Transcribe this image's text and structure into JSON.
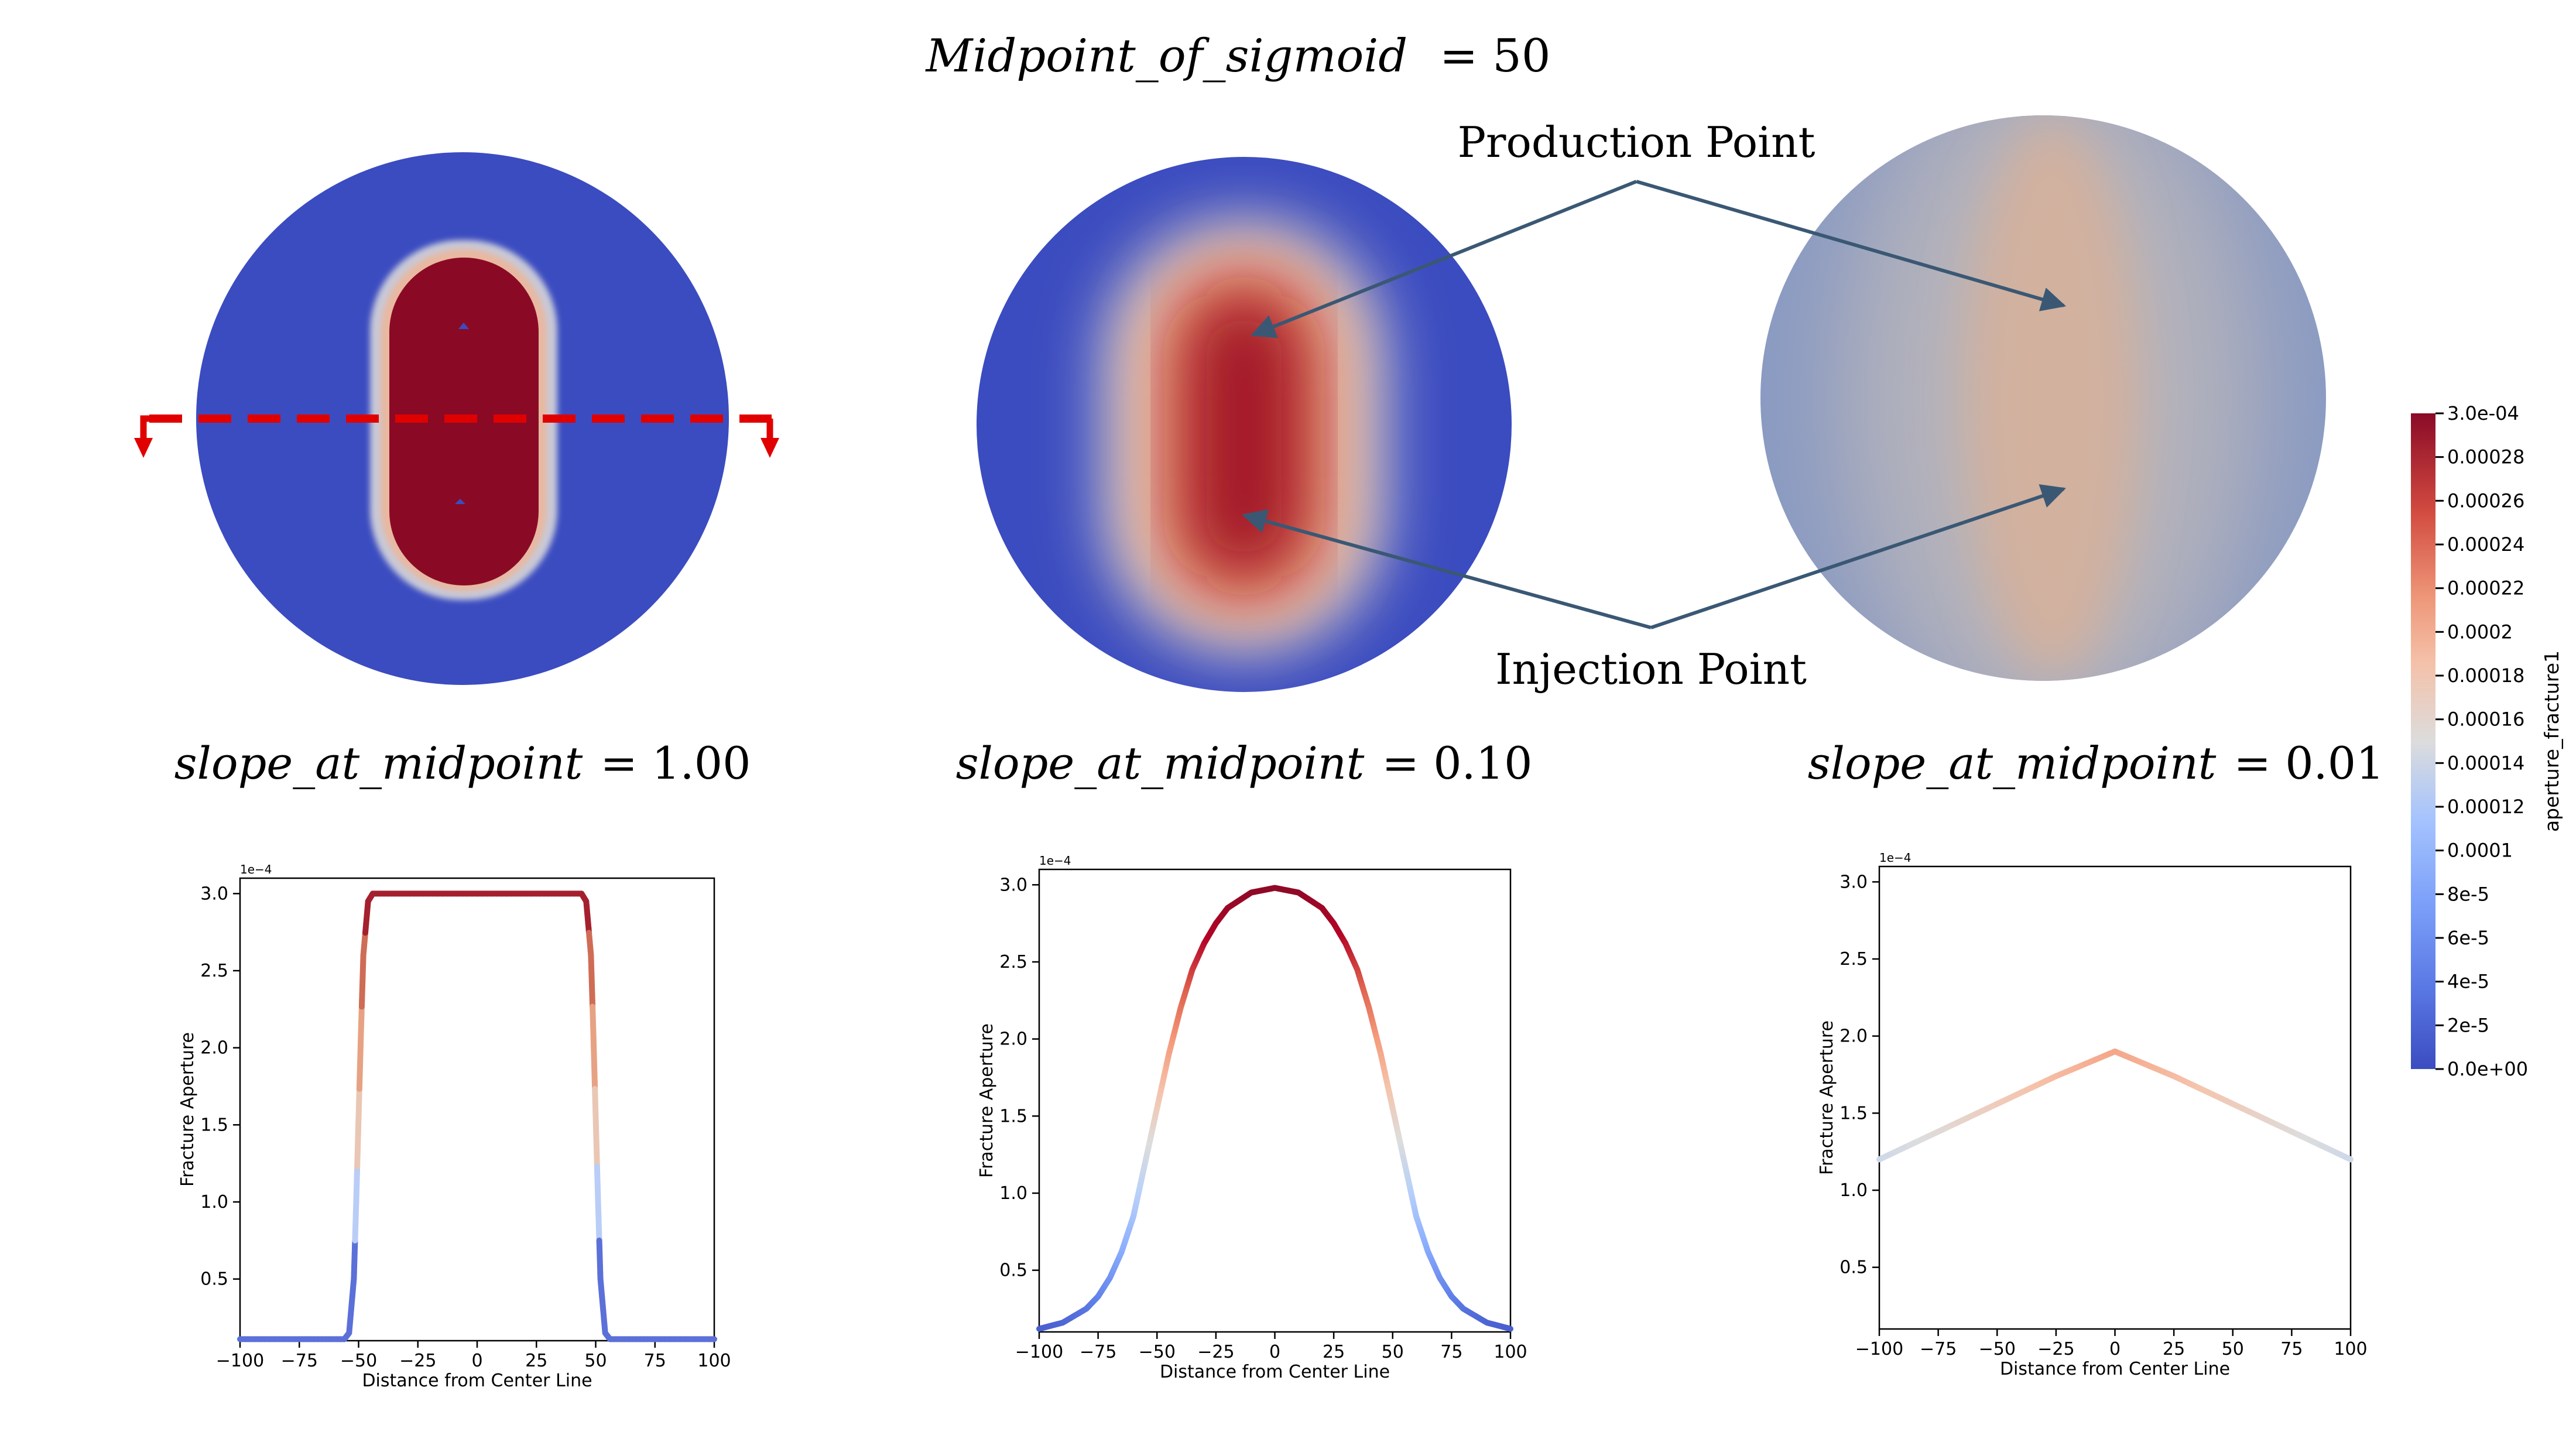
{
  "main_title": {
    "name": "Midpoint_of_sigmoid",
    "value": "= 50"
  },
  "annotations": {
    "production": "Production Point",
    "injection": "Injection Point"
  },
  "slope_labels": [
    {
      "name": "slope_at_midpoint",
      "value": "= 1.00"
    },
    {
      "name": "slope_at_midpoint",
      "value": "= 0.10"
    },
    {
      "name": "slope_at_midpoint",
      "value": "= 0.01"
    }
  ],
  "colorbar": {
    "title": "aperture_fracture1",
    "min": 0,
    "max": 0.0003,
    "tick_labels": [
      "3.0e-04",
      "0.00028",
      "0.00026",
      "0.00024",
      "0.00022",
      "0.0002",
      "0.00018",
      "0.00016",
      "0.00014",
      "0.00012",
      "0.0001",
      "8e-5",
      "6e-5",
      "4e-5",
      "2e-5",
      "0.0e+00"
    ],
    "colors": [
      "#3b4cc0",
      "#6282ea",
      "#8db0fe",
      "#b8d0f9",
      "#dddddd",
      "#f5c4ac",
      "#f49a7b",
      "#de604d",
      "#b40426",
      "#8b0a27"
    ]
  },
  "chart_data": [
    {
      "type": "line",
      "title": "",
      "xlabel": "Distance from Center Line",
      "ylabel": "Fracture Aperture",
      "y_multiplier": "1e−4",
      "xlim": [
        -100,
        100
      ],
      "ylim": [
        0.1,
        3.1
      ],
      "xticks": [
        -100,
        -75,
        -50,
        -25,
        0,
        25,
        50,
        75,
        100
      ],
      "xtick_labels": [
        "−100",
        "−75",
        "−50",
        "−25",
        "0",
        "25",
        "50",
        "75",
        "100"
      ],
      "yticks": [
        0.5,
        1.0,
        1.5,
        2.0,
        2.5,
        3.0
      ],
      "ytick_labels": [
        "0.5",
        "1.0",
        "1.5",
        "2.0",
        "2.5",
        "3.0"
      ],
      "midpoint": 50,
      "slope": 1.0,
      "series": [
        {
          "x": [
            -100,
            -75,
            -56,
            -54,
            -52,
            -51,
            -50,
            -49,
            -48,
            -46,
            -44,
            -25,
            0,
            25,
            44,
            46,
            48,
            49,
            50,
            51,
            52,
            54,
            56,
            75,
            100
          ],
          "y": [
            0.11,
            0.11,
            0.11,
            0.15,
            0.5,
            1.0,
            1.55,
            2.1,
            2.6,
            2.95,
            3.0,
            3.0,
            3.0,
            3.0,
            3.0,
            2.95,
            2.6,
            2.1,
            1.55,
            1.0,
            0.5,
            0.15,
            0.11,
            0.11,
            0.11
          ]
        }
      ]
    },
    {
      "type": "line",
      "title": "",
      "xlabel": "Distance from Center Line",
      "ylabel": "Fracture Aperture",
      "y_multiplier": "1e−4",
      "xlim": [
        -100,
        100
      ],
      "ylim": [
        0.1,
        3.1
      ],
      "xticks": [
        -100,
        -75,
        -50,
        -25,
        0,
        25,
        50,
        75,
        100
      ],
      "xtick_labels": [
        "−100",
        "−75",
        "−50",
        "−25",
        "0",
        "25",
        "50",
        "75",
        "100"
      ],
      "yticks": [
        0.5,
        1.0,
        1.5,
        2.0,
        2.5,
        3.0
      ],
      "ytick_labels": [
        "0.5",
        "1.0",
        "1.5",
        "2.0",
        "2.5",
        "3.0"
      ],
      "midpoint": 50,
      "slope": 0.1,
      "series": [
        {
          "x": [
            -100,
            -90,
            -80,
            -75,
            -70,
            -65,
            -60,
            -55,
            -50,
            -45,
            -40,
            -35,
            -30,
            -25,
            -20,
            -10,
            0,
            10,
            20,
            25,
            30,
            35,
            40,
            45,
            50,
            55,
            60,
            65,
            70,
            75,
            80,
            90,
            100
          ],
          "y": [
            0.12,
            0.16,
            0.25,
            0.33,
            0.45,
            0.62,
            0.85,
            1.2,
            1.55,
            1.9,
            2.2,
            2.45,
            2.62,
            2.75,
            2.85,
            2.95,
            2.98,
            2.95,
            2.85,
            2.75,
            2.62,
            2.45,
            2.2,
            1.9,
            1.55,
            1.2,
            0.85,
            0.62,
            0.45,
            0.33,
            0.25,
            0.16,
            0.12
          ]
        }
      ]
    },
    {
      "type": "line",
      "title": "",
      "xlabel": "Distance from Center Line",
      "ylabel": "Fracture Aperture",
      "y_multiplier": "1e−4",
      "xlim": [
        -100,
        100
      ],
      "ylim": [
        0.1,
        3.1
      ],
      "xticks": [
        -100,
        -75,
        -50,
        -25,
        0,
        25,
        50,
        75,
        100
      ],
      "xtick_labels": [
        "−100",
        "−75",
        "−50",
        "−25",
        "0",
        "25",
        "50",
        "75",
        "100"
      ],
      "yticks": [
        0.5,
        1.0,
        1.5,
        2.0,
        2.5,
        3.0
      ],
      "ytick_labels": [
        "0.5",
        "1.0",
        "1.5",
        "2.0",
        "2.5",
        "3.0"
      ],
      "midpoint": 50,
      "slope": 0.01,
      "series": [
        {
          "x": [
            -100,
            -75,
            -50,
            -25,
            0,
            25,
            50,
            75,
            100
          ],
          "y": [
            1.2,
            1.38,
            1.56,
            1.74,
            1.9,
            1.74,
            1.56,
            1.38,
            1.2
          ]
        }
      ]
    }
  ]
}
